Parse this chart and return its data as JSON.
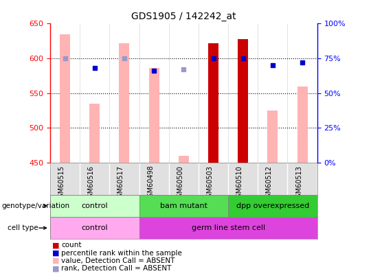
{
  "title": "GDS1905 / 142242_at",
  "samples": [
    "GSM60515",
    "GSM60516",
    "GSM60517",
    "GSM60498",
    "GSM60500",
    "GSM60503",
    "GSM60510",
    "GSM60512",
    "GSM60513"
  ],
  "bar_values": [
    635,
    535,
    622,
    586,
    460,
    622,
    628,
    525,
    560
  ],
  "bar_absent": [
    true,
    true,
    true,
    true,
    true,
    false,
    false,
    true,
    true
  ],
  "rank_values": [
    75,
    68,
    75,
    66,
    67,
    75,
    75,
    70,
    72
  ],
  "rank_absent": [
    true,
    false,
    true,
    false,
    true,
    false,
    false,
    false,
    false
  ],
  "ylim_left": [
    450,
    650
  ],
  "ylim_right": [
    0,
    100
  ],
  "yticks_left": [
    450,
    500,
    550,
    600,
    650
  ],
  "yticks_right": [
    0,
    25,
    50,
    75,
    100
  ],
  "color_bar_present": "#cc0000",
  "color_bar_absent": "#ffb3b3",
  "color_rank_present": "#0000cc",
  "color_rank_absent": "#9999cc",
  "genotype_groups": [
    {
      "label": "control",
      "start": 0,
      "end": 3,
      "color": "#ccffcc"
    },
    {
      "label": "bam mutant",
      "start": 3,
      "end": 6,
      "color": "#55dd55"
    },
    {
      "label": "dpp overexpressed",
      "start": 6,
      "end": 9,
      "color": "#33cc33"
    }
  ],
  "celltype_groups": [
    {
      "label": "control",
      "start": 0,
      "end": 3,
      "color": "#ffaaee"
    },
    {
      "label": "germ line stem cell",
      "start": 3,
      "end": 9,
      "color": "#dd44dd"
    }
  ],
  "legend_items": [
    {
      "label": "count",
      "color": "#cc0000"
    },
    {
      "label": "percentile rank within the sample",
      "color": "#0000cc"
    },
    {
      "label": "value, Detection Call = ABSENT",
      "color": "#ffb3b3"
    },
    {
      "label": "rank, Detection Call = ABSENT",
      "color": "#9999cc"
    }
  ]
}
